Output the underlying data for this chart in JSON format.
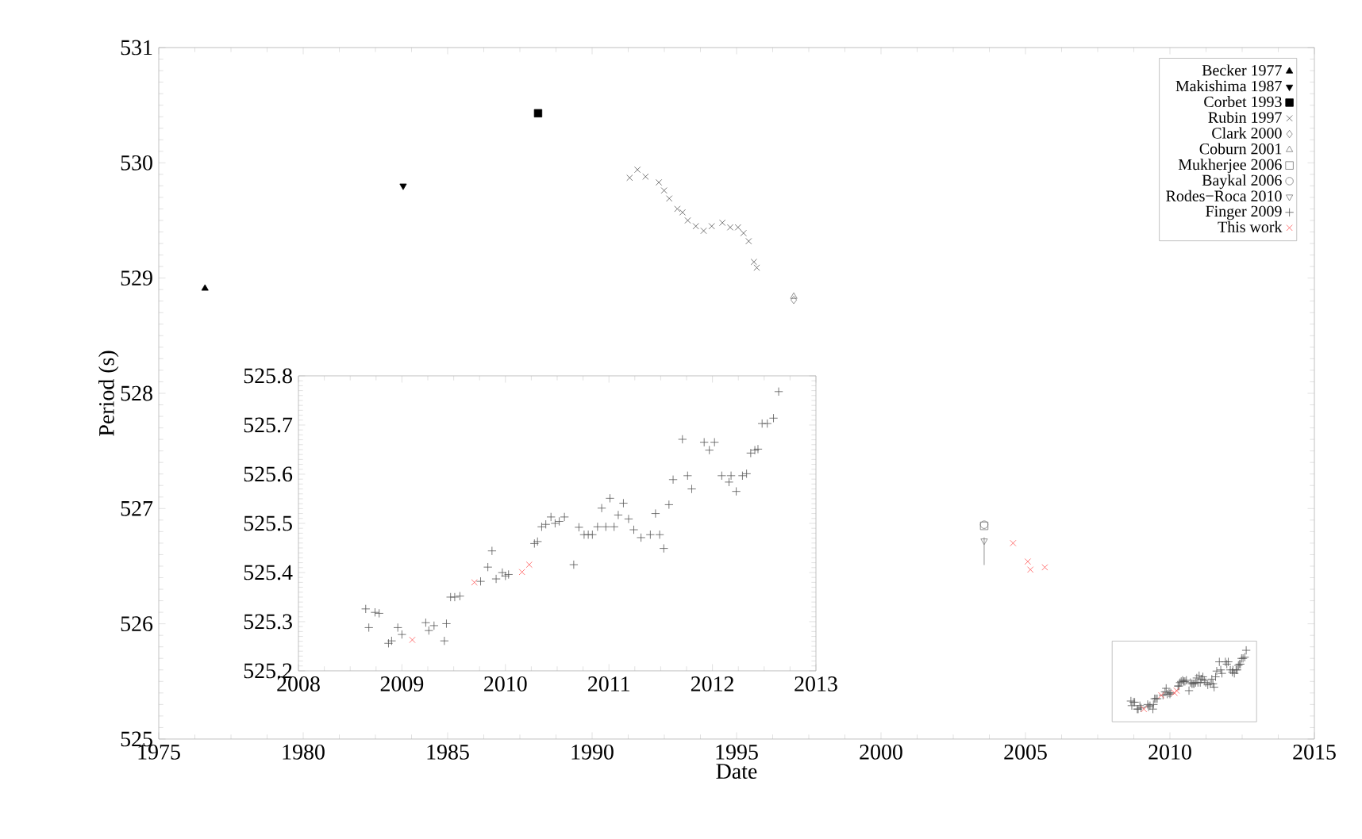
{
  "chart_data": [
    {
      "type": "scatter",
      "xlabel": "Date",
      "ylabel": "Period (s)",
      "xlim": [
        1975,
        2015
      ],
      "xticks": [
        1975,
        1980,
        1985,
        1990,
        1995,
        2000,
        2005,
        2010,
        2015
      ],
      "ylim": [
        525,
        531
      ],
      "yticks": [
        525,
        526,
        527,
        528,
        529,
        530,
        531
      ],
      "legend": "top right",
      "grid": false,
      "series": [
        {
          "name": "Becker 1977",
          "color": "#000000",
          "marker": "triangle",
          "x": [
            1976.6
          ],
          "values": [
            528.91
          ]
        },
        {
          "name": "Makishima 1987",
          "color": "#000000",
          "marker": "triangle-down",
          "x": [
            1983.46
          ],
          "values": [
            529.8
          ]
        },
        {
          "name": "Corbet 1993",
          "color": "#000000",
          "marker": "square",
          "x": [
            1988.13
          ],
          "values": [
            530.43
          ]
        },
        {
          "name": "Rubin 1997",
          "color": "#555555",
          "marker": "cross",
          "x": [
            1991.3,
            1991.57,
            1991.85,
            1992.31,
            1992.49,
            1992.67,
            1992.95,
            1993.13,
            1993.31,
            1993.59,
            1993.86,
            1994.14,
            1994.51,
            1994.78,
            1995.05,
            1995.24,
            1995.42,
            1995.6,
            1995.7
          ],
          "values": [
            529.87,
            529.94,
            529.88,
            529.83,
            529.76,
            529.69,
            529.6,
            529.57,
            529.5,
            529.45,
            529.41,
            529.45,
            529.48,
            529.44,
            529.44,
            529.39,
            529.32,
            529.14,
            529.09
          ]
        },
        {
          "name": "Clark 2000",
          "color": "#777777",
          "marker": "diamond",
          "x": [
            1996.98
          ],
          "values": [
            528.81
          ]
        },
        {
          "name": "Coburn 2001",
          "color": "#777777",
          "marker": "triangle",
          "x": [
            1996.98
          ],
          "values": [
            528.84
          ]
        },
        {
          "name": "Mukherjee 2006",
          "color": "#777777",
          "marker": "square",
          "x": [
            2003.57
          ],
          "values": [
            526.85
          ]
        },
        {
          "name": "Baykal 2006",
          "color": "#777777",
          "marker": "circle",
          "x": [
            2003.57
          ],
          "values": [
            526.86
          ]
        },
        {
          "name": "Rodes−Roca 2010",
          "color": "#777777",
          "marker": "triangle-down",
          "x": [
            2003.57
          ],
          "values": [
            526.72
          ],
          "errors": [
            [
              526.51,
              526.75
            ]
          ]
        },
        {
          "name": "Finger 2009",
          "color": "#555555",
          "marker": "plus",
          "x": [
            2008.65,
            2008.68,
            2008.74,
            2008.78,
            2008.87,
            2008.9,
            2008.96,
            2009.0,
            2009.23,
            2009.26,
            2009.31,
            2009.41,
            2009.43,
            2009.47,
            2009.51,
            2009.56,
            2009.76,
            2009.83,
            2009.87,
            2009.91,
            2009.97,
            2010.0,
            2010.03,
            2010.28,
            2010.31,
            2010.35,
            2010.39,
            2010.44,
            2010.48,
            2010.52,
            2010.57,
            2010.66,
            2010.71,
            2010.76,
            2010.8,
            2010.84,
            2010.89,
            2010.93,
            2010.97,
            2011.01,
            2011.05,
            2011.09,
            2011.14,
            2011.19,
            2011.24,
            2011.31,
            2011.4,
            2011.45,
            2011.49,
            2011.53,
            2011.58,
            2011.62,
            2011.71,
            2011.76,
            2011.8,
            2011.92,
            2011.97,
            2012.02,
            2012.09,
            2012.16,
            2012.18,
            2012.23,
            2012.29,
            2012.33,
            2012.37,
            2012.41,
            2012.44,
            2012.48,
            2012.53,
            2012.59,
            2012.64
          ],
          "values": [
            525.33,
            525.29,
            525.32,
            525.32,
            525.26,
            525.26,
            525.29,
            525.27,
            525.3,
            525.28,
            525.29,
            525.26,
            525.3,
            525.35,
            525.35,
            525.35,
            525.38,
            525.41,
            525.44,
            525.39,
            525.4,
            525.39,
            525.4,
            525.46,
            525.46,
            525.49,
            525.5,
            525.51,
            525.5,
            525.5,
            525.51,
            525.42,
            525.49,
            525.48,
            525.48,
            525.48,
            525.49,
            525.53,
            525.49,
            525.55,
            525.49,
            525.52,
            525.54,
            525.51,
            525.49,
            525.47,
            525.48,
            525.52,
            525.48,
            525.45,
            525.54,
            525.59,
            525.67,
            525.6,
            525.57,
            525.67,
            525.65,
            525.67,
            525.6,
            525.58,
            525.6,
            525.57,
            525.6,
            525.6,
            525.64,
            525.65,
            525.65,
            525.7,
            525.7,
            525.71,
            525.77
          ]
        },
        {
          "name": "This work",
          "color": "#ff5555",
          "marker": "cross",
          "x": [
            2009.1,
            2009.7,
            2010.16,
            2010.23,
            2004.57,
            2005.08,
            2005.17,
            2005.67
          ],
          "values": [
            525.26,
            525.38,
            525.4,
            525.42,
            526.7,
            526.54,
            526.47,
            526.49
          ]
        }
      ]
    },
    {
      "type": "scatter",
      "xlim": [
        2008,
        2013
      ],
      "xticks": [
        2008,
        2009,
        2010,
        2011,
        2012,
        2013
      ],
      "ylim": [
        525.2,
        525.8
      ],
      "yticks": [
        525.2,
        525.3,
        525.4,
        525.5,
        525.6,
        525.7,
        525.8
      ],
      "grid": false,
      "series": [
        {
          "color": "#555555",
          "marker": "plus",
          "x": [
            2008.65,
            2008.68,
            2008.74,
            2008.78,
            2008.87,
            2008.9,
            2008.96,
            2009.0,
            2009.23,
            2009.26,
            2009.31,
            2009.41,
            2009.43,
            2009.47,
            2009.51,
            2009.56,
            2009.76,
            2009.83,
            2009.87,
            2009.91,
            2009.97,
            2010.0,
            2010.03,
            2010.28,
            2010.31,
            2010.35,
            2010.39,
            2010.44,
            2010.48,
            2010.52,
            2010.57,
            2010.66,
            2010.71,
            2010.76,
            2010.8,
            2010.84,
            2010.89,
            2010.93,
            2010.97,
            2011.01,
            2011.05,
            2011.09,
            2011.14,
            2011.19,
            2011.24,
            2011.31,
            2011.4,
            2011.45,
            2011.49,
            2011.53,
            2011.58,
            2011.62,
            2011.71,
            2011.76,
            2011.8,
            2011.92,
            2011.97,
            2012.02,
            2012.09,
            2012.16,
            2012.18,
            2012.23,
            2012.29,
            2012.33,
            2012.37,
            2012.41,
            2012.44,
            2012.48,
            2012.53,
            2012.59,
            2012.64
          ],
          "values": [
            525.326,
            525.288,
            525.319,
            525.317,
            525.256,
            525.261,
            525.288,
            525.274,
            525.298,
            525.282,
            525.292,
            525.261,
            525.296,
            525.35,
            525.35,
            525.352,
            525.382,
            525.411,
            525.444,
            525.387,
            525.4,
            525.393,
            525.396,
            525.459,
            525.463,
            525.493,
            525.498,
            525.513,
            525.5,
            525.504,
            525.513,
            525.416,
            525.492,
            525.477,
            525.477,
            525.477,
            525.493,
            525.531,
            525.493,
            525.551,
            525.493,
            525.517,
            525.541,
            525.509,
            525.487,
            525.471,
            525.477,
            525.52,
            525.477,
            525.449,
            525.538,
            525.589,
            525.671,
            525.597,
            525.57,
            525.665,
            525.649,
            525.665,
            525.597,
            525.584,
            525.597,
            525.565,
            525.597,
            525.601,
            525.643,
            525.649,
            525.651,
            525.703,
            525.703,
            525.714,
            525.768
          ]
        },
        {
          "color": "#ff5555",
          "marker": "cross",
          "x": [
            2009.1,
            2009.7,
            2010.16,
            2010.23
          ],
          "values": [
            525.263,
            525.38,
            525.401,
            525.416
          ]
        }
      ]
    }
  ]
}
